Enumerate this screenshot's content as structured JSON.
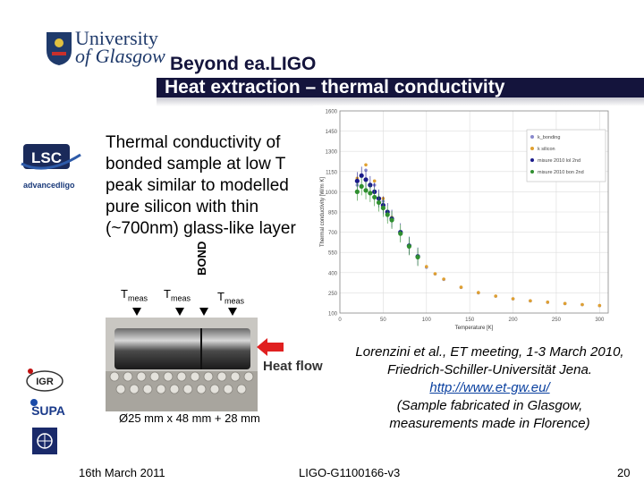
{
  "header": {
    "logo_line1": "University",
    "logo_line2": "of Glasgow",
    "title_line1": "Beyond ea.LIGO",
    "title_line2": "Heat extraction – thermal conductivity"
  },
  "sidebar": {
    "lsc_logo_text": "LSC",
    "advligo_logo_text": "advancedligo",
    "igr_logo_text": "IGR",
    "supa_logo_text": "SUPA"
  },
  "body": {
    "description_lines": [
      "Thermal conductivity of",
      "bonded sample at low T",
      "peak similar to modelled",
      "pure silicon with thin",
      "(~700nm) glass-like layer"
    ]
  },
  "photo": {
    "bond_label": "BOND",
    "tmeas_base": "T",
    "tmeas_sub": "meas",
    "heat_flow_label": "Heat flow",
    "dimensions": "Ø25 mm x 48 mm + 28 mm"
  },
  "reference": {
    "line1": "Lorenzini et al., ET meeting, 1-3 March 2010,",
    "line2": "Friedrich-Schiller-Universität Jena.",
    "link": "http://www.et-gw.eu/",
    "line3": "(Sample fabricated in Glasgow,",
    "line4": "measurements made in Florence)"
  },
  "footer": {
    "date": "16th March 2011",
    "doc_id": "LIGO-G1100166-v3",
    "page_number": "20"
  },
  "chart_data": {
    "type": "scatter",
    "xlabel": "Temperature [K]",
    "ylabel": "Thermal conductivity [W/m K]",
    "xlim": [
      0,
      310
    ],
    "ylim": [
      100,
      1600
    ],
    "x_ticks": [
      "0",
      "50",
      "100",
      "150",
      "200",
      "250",
      "300"
    ],
    "y_ticks": [
      "100",
      "250",
      "400",
      "550",
      "700",
      "850",
      "1000",
      "1150",
      "1300",
      "1450",
      "1600"
    ],
    "legend_position": "top-right",
    "series": [
      {
        "name": "k_bonding",
        "color": "#8888cc",
        "x": [
          20,
          30,
          40,
          50,
          60,
          70,
          80,
          90,
          100,
          110,
          120,
          140,
          160,
          180,
          200,
          220,
          240,
          260,
          280,
          300
        ],
        "y": [
          1050,
          1160,
          1050,
          930,
          800,
          690,
          590,
          510,
          440,
          390,
          350,
          290,
          250,
          225,
          205,
          190,
          180,
          170,
          162,
          155
        ]
      },
      {
        "name": "k silicon",
        "color": "#e0a030",
        "x": [
          20,
          30,
          40,
          50,
          60,
          70,
          80,
          90,
          100,
          110,
          120,
          140,
          160,
          180,
          200,
          220,
          240,
          260,
          280,
          300
        ],
        "y": [
          1100,
          1200,
          1080,
          950,
          810,
          700,
          600,
          515,
          445,
          392,
          352,
          292,
          252,
          226,
          206,
          191,
          181,
          171,
          163,
          156
        ]
      },
      {
        "name": "misure 2010 lol 2nd",
        "color": "#1a1a8a",
        "x": [
          20,
          25,
          30,
          35,
          40,
          45,
          50,
          55,
          60,
          70,
          80,
          90
        ],
        "y": [
          1080,
          1120,
          1090,
          1050,
          1000,
          950,
          900,
          850,
          800,
          700,
          600,
          520
        ]
      },
      {
        "name": "misure 2010 bon 2nd",
        "color": "#2f8f2f",
        "x": [
          20,
          25,
          30,
          35,
          40,
          45,
          50,
          55,
          60,
          70,
          80,
          90
        ],
        "y": [
          1000,
          1040,
          1010,
          990,
          960,
          920,
          880,
          830,
          790,
          690,
          595,
          515
        ]
      }
    ]
  }
}
